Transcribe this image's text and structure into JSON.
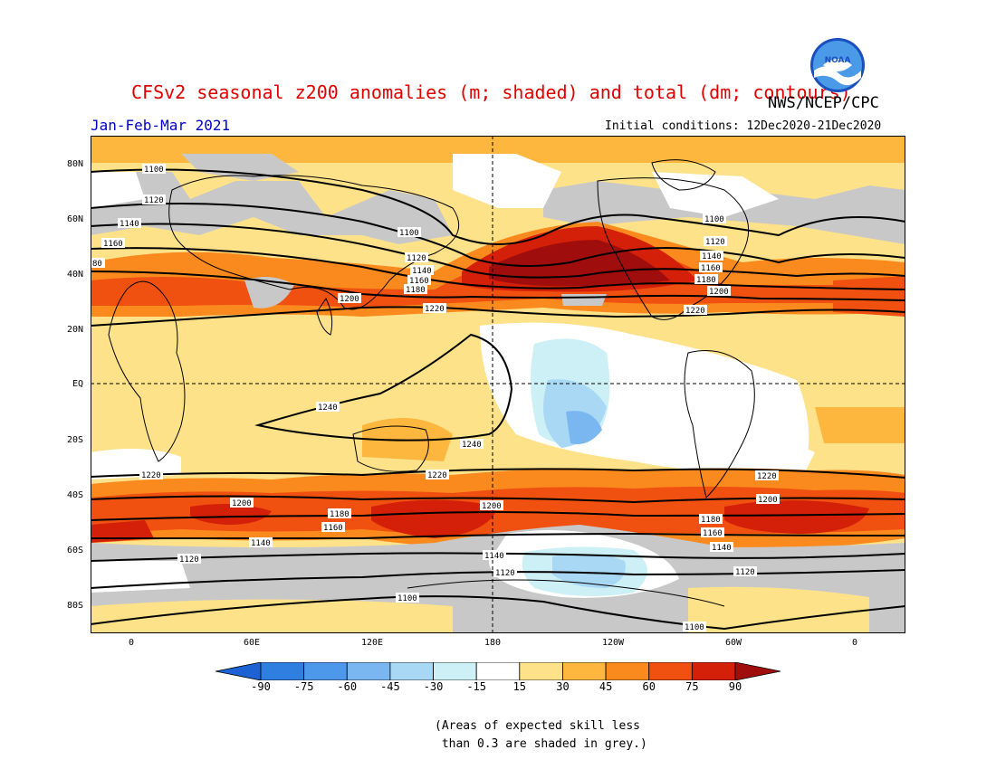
{
  "title": "CFSv2 seasonal z200 anomalies (m; shaded) and total (dm; contours)",
  "agency": "NWS/NCEP/CPC",
  "logo_text": "NOAA",
  "season": "Jan-Feb-Mar 2021",
  "initial_conditions": "Initial conditions: 12Dec2020-21Dec2020",
  "lat_labels": [
    "80N",
    "60N",
    "40N",
    "20N",
    "EQ",
    "20S",
    "40S",
    "60S",
    "80S"
  ],
  "lon_labels": [
    "0",
    "60E",
    "120E",
    "180",
    "120W",
    "60W",
    "0"
  ],
  "colorbar": {
    "labels": [
      "-90",
      "-75",
      "-60",
      "-45",
      "-30",
      "-15",
      "15",
      "30",
      "45",
      "60",
      "75",
      "90"
    ],
    "colors": [
      "#1d62d2",
      "#2f7fe0",
      "#4d98ea",
      "#7ab6f0",
      "#a9d8f5",
      "#ccf0f5",
      "#ffffff",
      "#fde28a",
      "#fdb63e",
      "#fb8a1e",
      "#f05010",
      "#d42008",
      "#a00d0d"
    ]
  },
  "contour_labels": {
    "c1100": "1100",
    "c1120": "1120",
    "c1140": "1140",
    "c1160": "1160",
    "c1180": "1180",
    "c1200": "1200",
    "c1220": "1220",
    "c1240": "1240",
    "c80": "80"
  },
  "footnote": "(Areas of expected skill less\n than 0.3 are shaded in grey.)"
}
